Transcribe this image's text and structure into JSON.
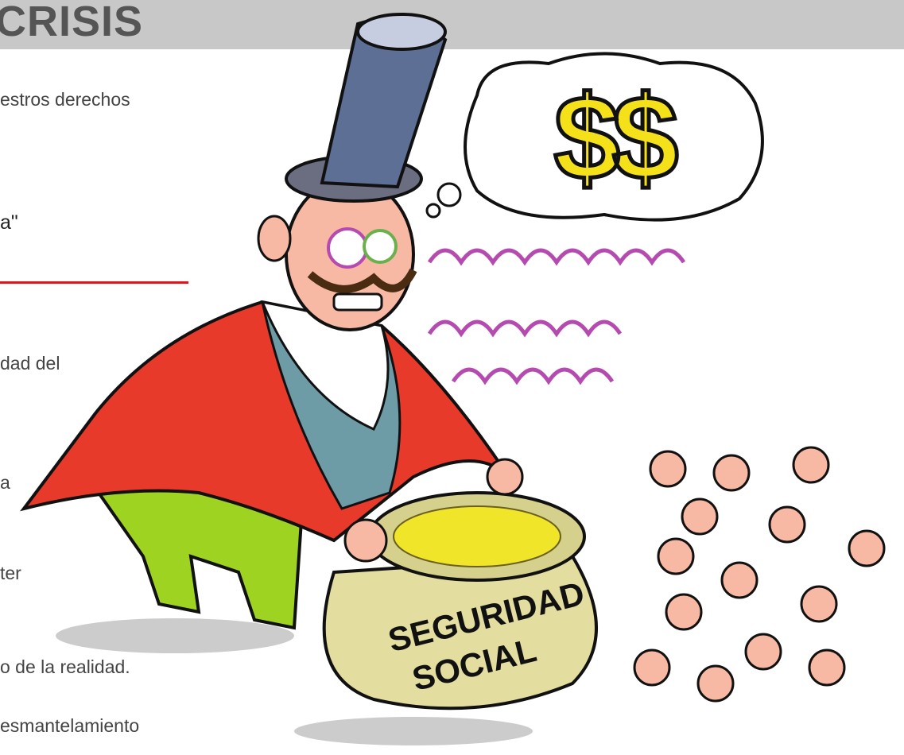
{
  "header": {
    "title": "CRISIS"
  },
  "article": {
    "lines": [
      "estros derechos",
      "a\"",
      "dad del",
      "a",
      "ter",
      "o de la realidad.",
      "esmantelamiento"
    ]
  },
  "cartoon": {
    "thought": "$$",
    "pot_label": [
      "SEGURIDAD",
      "SOCIAL"
    ]
  }
}
